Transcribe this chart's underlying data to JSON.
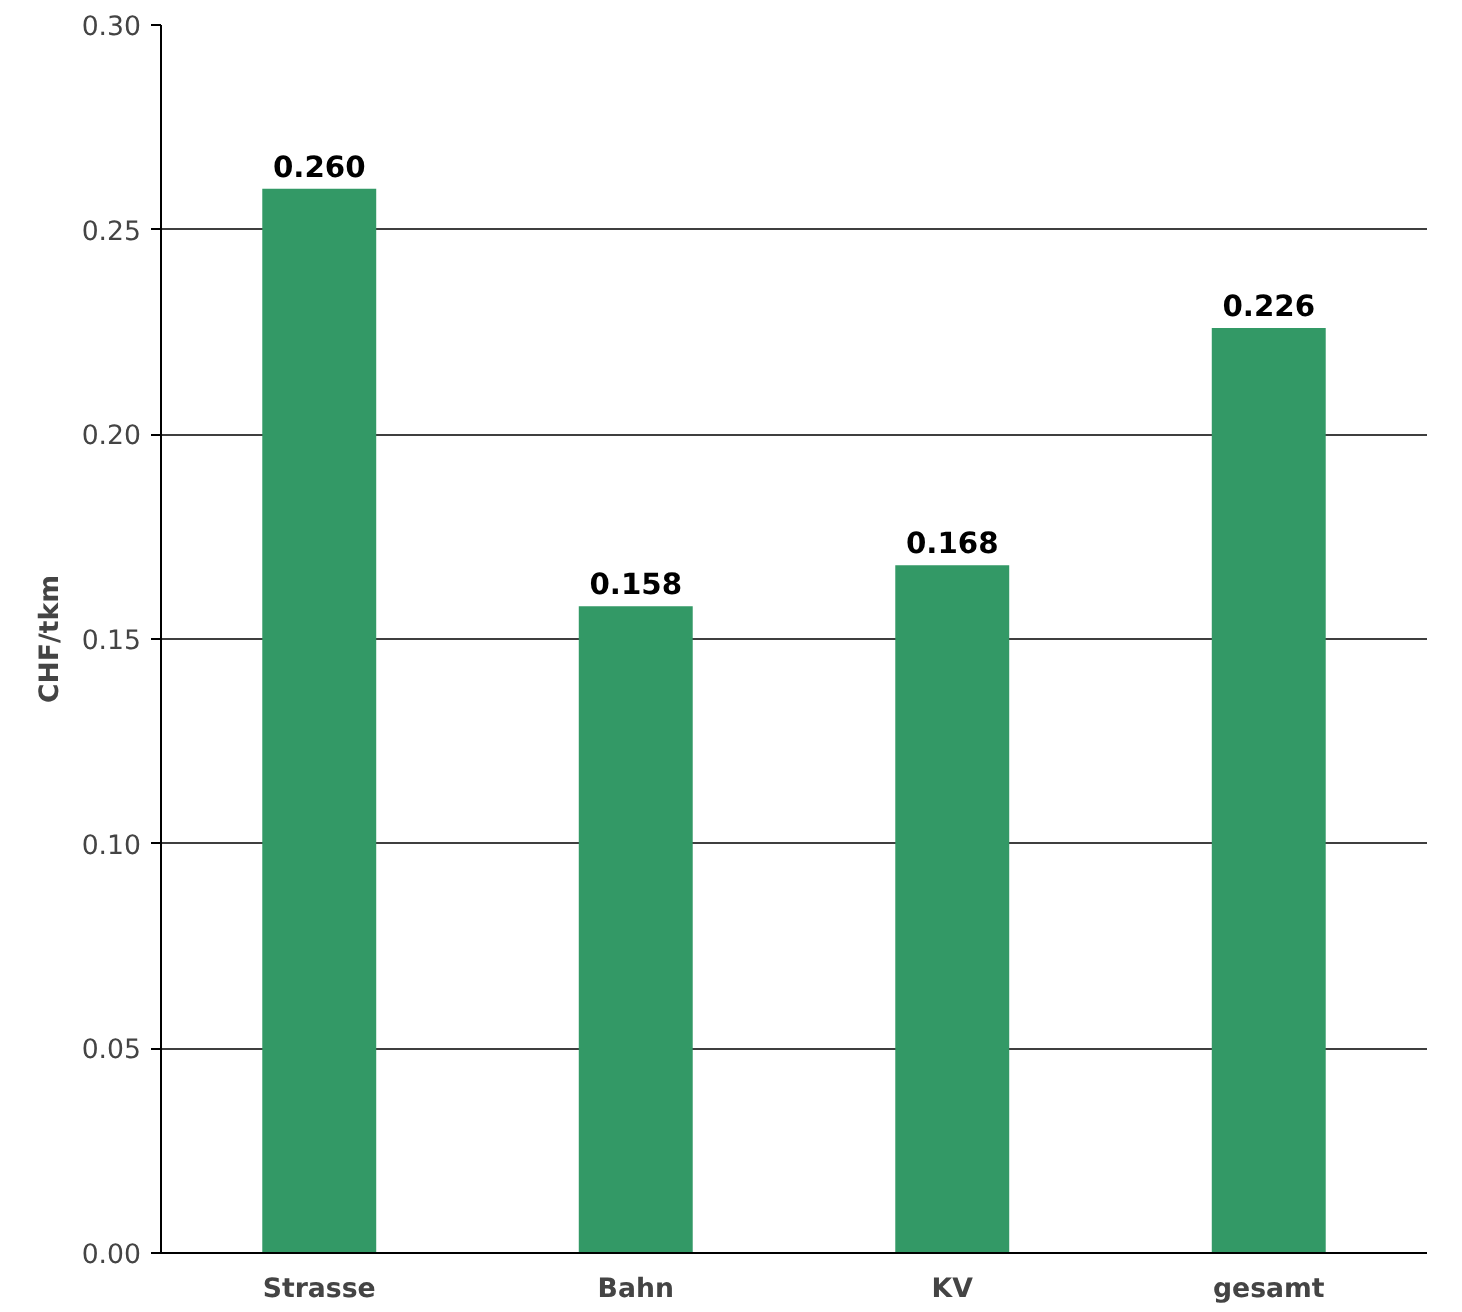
{
  "chart_data": {
    "type": "bar",
    "ylabel": "CHF/tkm",
    "categories": [
      "Strasse",
      "Bahn",
      "KV",
      "gesamt"
    ],
    "values": [
      0.26,
      0.158,
      0.168,
      0.226
    ],
    "color": "#339966",
    "ylim": [
      0,
      0.3
    ],
    "yticks": [
      {
        "value": 0,
        "label": "0.00"
      },
      {
        "value": 0.05,
        "label": "0.05"
      },
      {
        "value": 0.1,
        "label": "0.10"
      },
      {
        "value": 0.15,
        "label": "0.15"
      },
      {
        "value": 0.2,
        "label": "0.20"
      },
      {
        "value": 0.25,
        "label": "0.25"
      },
      {
        "value": 0.3,
        "label": "0.30"
      }
    ],
    "value_labels": [
      "0.260",
      "0.158",
      "0.168",
      "0.226"
    ],
    "grid": "y"
  }
}
